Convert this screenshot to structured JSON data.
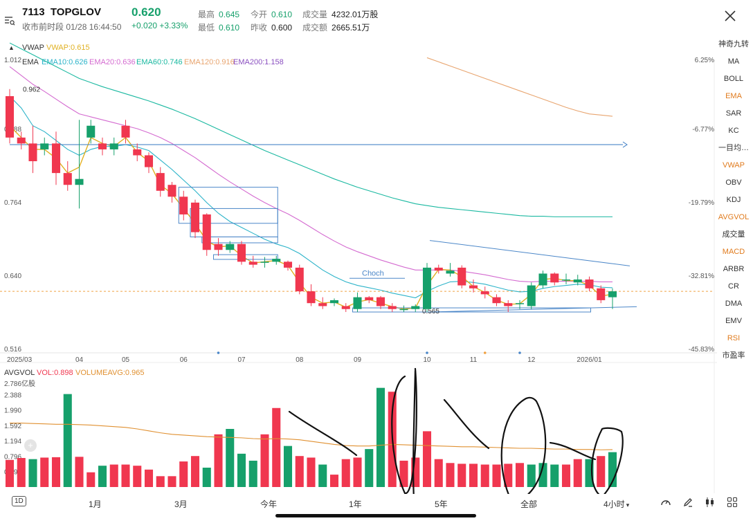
{
  "header": {
    "code": "7113",
    "name": "TOPGLOV",
    "price": "0.620",
    "status": "收市前时段 01/28 16:44:50",
    "change": "+0.020 +3.33%",
    "high_label": "最高",
    "high": "0.645",
    "open_label": "今开",
    "open": "0.610",
    "volume_label": "成交量",
    "volume": "4232.01万股",
    "low_label": "最低",
    "low": "0.610",
    "prevclose_label": "昨收",
    "prevclose": "0.600",
    "turnover_label": "成交额",
    "turnover": "2665.51万",
    "accent_up": "#f0374f",
    "accent_down": "#16a06b"
  },
  "icons": {
    "menu": "menu-search-icon",
    "close": "close-icon"
  },
  "sidebar": {
    "items": [
      "神奇九转",
      "MA",
      "BOLL",
      "EMA",
      "SAR",
      "KC",
      "一目均…",
      "VWAP",
      "OBV",
      "KDJ",
      "AVGVOL",
      "成交量",
      "MACD",
      "ARBR",
      "CR",
      "DMA",
      "EMV",
      "RSI",
      "市盈率"
    ],
    "active": [
      "EMA",
      "VWAP",
      "AVGVOL",
      "MACD",
      "RSI"
    ]
  },
  "indicators": {
    "vwap_name": "VWAP",
    "vwap_value": "VWAP:0.615",
    "ema_name": "EMA",
    "ema10": "EMA10:0.626",
    "ema20": "EMA20:0.636",
    "ema60": "EMA60:0.746",
    "ema120": "EMA120:0.916",
    "ema200": "EMA200:1.158",
    "avgvol_name": "AVGVOL",
    "vol": "VOL:0.898",
    "volavg": "VOLUMEAVG:0.965",
    "ema_colors": {
      "ema10": "#2bb3c9",
      "ema20": "#d46ad0",
      "ema60": "#19b8a0",
      "ema120": "#e8a46e",
      "ema200": "#8a4fc0",
      "vwap": "#e0b020"
    }
  },
  "annotations": {
    "choch": "Choch",
    "low_marker": "0.565",
    "high_marker": "0.962"
  },
  "bottom_bar": {
    "period": "1D",
    "range_labels": [
      "1月",
      "3月",
      "今年",
      "1年",
      "5年",
      "全部"
    ],
    "interval": "4小时",
    "interval_arrow": "▾",
    "icons": [
      "gauge-icon",
      "pen-icon",
      "candlestick-icon",
      "grid-icon"
    ]
  },
  "chart_data": [
    {
      "type": "candlestick",
      "title": "7113 TOPGLOV",
      "x": [
        "2025/03",
        "2025/03b",
        "2025/03c",
        "2025/03d",
        "2025/03e",
        "2025/03f",
        "04",
        "04b",
        "04c",
        "04d",
        "05",
        "05b",
        "05c",
        "05d",
        "05e",
        "06",
        "06b",
        "06c",
        "06d",
        "06e",
        "07",
        "07b",
        "07c",
        "07d",
        "07e",
        "08",
        "08b",
        "08c",
        "08d",
        "08e",
        "09",
        "09b",
        "09c",
        "09d",
        "09e",
        "09f",
        "10",
        "10b",
        "10c",
        "10d",
        "11",
        "11b",
        "11c",
        "11d",
        "11e",
        "12",
        "12b",
        "12c",
        "12d",
        "12e",
        "2026/01",
        "2026/01b",
        "2026/01c"
      ],
      "xticks": [
        "2025/03",
        "04",
        "05",
        "06",
        "07",
        "08",
        "09",
        "10",
        "11",
        "12",
        "2026/01"
      ],
      "y_ticks_left": [
        "1.012",
        "0.888",
        "0.764",
        "0.640",
        "0.516"
      ],
      "y_ticks_right": [
        "6.25%",
        "-6.77%",
        "-19.79%",
        "-32.81%",
        "-45.83%"
      ],
      "ylim": [
        0.516,
        1.012
      ],
      "reference_price": 0.62,
      "open": [
        0.95,
        0.88,
        0.87,
        0.86,
        0.87,
        0.82,
        0.8,
        0.88,
        0.87,
        0.86,
        0.9,
        0.86,
        0.85,
        0.82,
        0.8,
        0.78,
        0.77,
        0.75,
        0.7,
        0.69,
        0.7,
        0.67,
        0.67,
        0.67,
        0.67,
        0.66,
        0.62,
        0.6,
        0.6,
        0.595,
        0.59,
        0.61,
        0.61,
        0.595,
        0.59,
        0.59,
        0.59,
        0.66,
        0.65,
        0.66,
        0.63,
        0.62,
        0.61,
        0.6,
        0.6,
        0.595,
        0.63,
        0.65,
        0.64,
        0.635,
        0.64,
        0.625,
        0.61
      ],
      "close": [
        0.88,
        0.87,
        0.84,
        0.87,
        0.82,
        0.8,
        0.81,
        0.9,
        0.86,
        0.87,
        0.88,
        0.85,
        0.83,
        0.79,
        0.78,
        0.75,
        0.72,
        0.69,
        0.69,
        0.7,
        0.67,
        0.665,
        0.67,
        0.675,
        0.66,
        0.62,
        0.6,
        0.595,
        0.605,
        0.59,
        0.61,
        0.605,
        0.595,
        0.59,
        0.59,
        0.595,
        0.66,
        0.655,
        0.655,
        0.63,
        0.625,
        0.615,
        0.6,
        0.595,
        0.6,
        0.63,
        0.65,
        0.635,
        0.64,
        0.64,
        0.625,
        0.605,
        0.62
      ],
      "high": [
        0.962,
        0.89,
        0.9,
        0.88,
        0.89,
        0.84,
        0.91,
        0.91,
        0.88,
        0.88,
        0.91,
        0.87,
        0.855,
        0.83,
        0.805,
        0.79,
        0.775,
        0.752,
        0.71,
        0.705,
        0.705,
        0.68,
        0.678,
        0.68,
        0.672,
        0.665,
        0.632,
        0.61,
        0.608,
        0.6,
        0.618,
        0.612,
        0.612,
        0.6,
        0.596,
        0.598,
        0.668,
        0.665,
        0.668,
        0.664,
        0.64,
        0.628,
        0.615,
        0.605,
        0.605,
        0.635,
        0.655,
        0.652,
        0.65,
        0.648,
        0.645,
        0.63,
        0.625
      ],
      "low": [
        0.87,
        0.86,
        0.82,
        0.85,
        0.8,
        0.79,
        0.76,
        0.87,
        0.85,
        0.85,
        0.87,
        0.84,
        0.82,
        0.78,
        0.77,
        0.74,
        0.71,
        0.68,
        0.68,
        0.685,
        0.665,
        0.66,
        0.66,
        0.665,
        0.655,
        0.615,
        0.595,
        0.59,
        0.595,
        0.585,
        0.585,
        0.6,
        0.59,
        0.585,
        0.585,
        0.585,
        0.585,
        0.65,
        0.645,
        0.625,
        0.618,
        0.608,
        0.595,
        0.585,
        0.59,
        0.59,
        0.625,
        0.63,
        0.632,
        0.63,
        0.62,
        0.6,
        0.59
      ],
      "series": [
        {
          "name": "EMA10",
          "values": [
            0.95,
            0.93,
            0.9,
            0.89,
            0.875,
            0.86,
            0.85,
            0.86,
            0.865,
            0.865,
            0.868,
            0.864,
            0.858,
            0.842,
            0.826,
            0.808,
            0.79,
            0.77,
            0.752,
            0.738,
            0.728,
            0.718,
            0.708,
            0.7,
            0.694,
            0.684,
            0.67,
            0.656,
            0.645,
            0.636,
            0.63,
            0.626,
            0.622,
            0.617,
            0.613,
            0.609,
            0.62,
            0.629,
            0.636,
            0.637,
            0.635,
            0.632,
            0.627,
            0.622,
            0.619,
            0.62,
            0.625,
            0.628,
            0.63,
            0.632,
            0.631,
            0.627,
            0.626
          ]
        },
        {
          "name": "EMA20",
          "values": [
            1.0,
            0.985,
            0.97,
            0.958,
            0.945,
            0.932,
            0.92,
            0.915,
            0.91,
            0.905,
            0.9,
            0.895,
            0.888,
            0.88,
            0.87,
            0.858,
            0.846,
            0.832,
            0.818,
            0.805,
            0.793,
            0.781,
            0.77,
            0.76,
            0.751,
            0.74,
            0.728,
            0.716,
            0.705,
            0.695,
            0.687,
            0.68,
            0.673,
            0.667,
            0.661,
            0.656,
            0.656,
            0.656,
            0.656,
            0.654,
            0.651,
            0.648,
            0.644,
            0.64,
            0.637,
            0.636,
            0.637,
            0.637,
            0.637,
            0.637,
            0.637,
            0.636,
            0.636
          ]
        },
        {
          "name": "EMA60",
          "values": [
            1.04,
            1.03,
            1.02,
            1.01,
            1.0,
            0.99,
            0.98,
            0.973,
            0.966,
            0.96,
            0.954,
            0.948,
            0.942,
            0.935,
            0.928,
            0.92,
            0.912,
            0.903,
            0.894,
            0.885,
            0.876,
            0.867,
            0.858,
            0.85,
            0.842,
            0.834,
            0.826,
            0.818,
            0.81,
            0.803,
            0.796,
            0.79,
            0.784,
            0.778,
            0.773,
            0.768,
            0.765,
            0.762,
            0.76,
            0.758,
            0.756,
            0.754,
            0.752,
            0.75,
            0.748,
            0.747,
            0.747,
            0.746,
            0.746,
            0.746,
            0.746,
            0.746,
            0.746
          ]
        },
        {
          "name": "EMA120",
          "values": [
            null,
            null,
            null,
            null,
            null,
            null,
            null,
            null,
            null,
            null,
            null,
            null,
            null,
            null,
            null,
            null,
            null,
            null,
            null,
            null,
            null,
            null,
            null,
            null,
            null,
            null,
            null,
            null,
            null,
            null,
            null,
            null,
            null,
            null,
            null,
            null,
            1.015,
            1.008,
            1.001,
            0.994,
            0.987,
            0.98,
            0.973,
            0.966,
            0.959,
            0.952,
            0.945,
            0.938,
            0.931,
            0.925,
            0.92,
            0.918,
            0.916
          ]
        },
        {
          "name": "VWAP",
          "values": [
            0.9,
            0.88,
            0.86,
            0.86,
            0.845,
            0.82,
            0.83,
            0.88,
            0.87,
            0.865,
            0.88,
            0.855,
            0.84,
            0.8,
            0.785,
            0.76,
            0.735,
            0.705,
            0.695,
            0.697,
            0.68,
            0.668,
            0.67,
            0.672,
            0.664,
            0.635,
            0.61,
            0.6,
            0.602,
            0.593,
            0.602,
            0.606,
            0.6,
            0.594,
            0.59,
            0.592,
            0.63,
            0.657,
            0.656,
            0.645,
            0.628,
            0.618,
            0.605,
            0.598,
            0.599,
            0.615,
            0.64,
            0.642,
            0.638,
            0.638,
            0.63,
            0.612,
            0.615
          ]
        }
      ]
    },
    {
      "type": "bar",
      "title": "AVGVOL",
      "unit_label": "2.786亿股",
      "y_ticks": [
        "2.388",
        "1.990",
        "1.592",
        "1.194",
        "0.796",
        "0.398"
      ],
      "ylim": [
        0,
        2.786
      ],
      "values": [
        0.7,
        0.75,
        0.72,
        0.76,
        0.77,
        2.4,
        0.78,
        0.38,
        0.55,
        0.58,
        0.58,
        0.55,
        0.45,
        0.28,
        0.28,
        0.66,
        0.8,
        0.5,
        1.36,
        1.5,
        0.86,
        0.68,
        1.36,
        2.04,
        1.06,
        0.8,
        0.76,
        0.58,
        0.32,
        0.72,
        0.76,
        0.98,
        2.56,
        2.46,
        0.68,
        0.76,
        1.44,
        0.72,
        0.62,
        0.6,
        0.6,
        0.58,
        0.58,
        0.6,
        0.62,
        0.58,
        0.62,
        0.58,
        0.58,
        0.72,
        0.72,
        0.8,
        0.9
      ],
      "colors_up": [
        false,
        false,
        true,
        false,
        false,
        true,
        false,
        false,
        true,
        false,
        false,
        false,
        false,
        false,
        false,
        false,
        false,
        true,
        false,
        true,
        true,
        true,
        false,
        false,
        true,
        false,
        false,
        true,
        false,
        false,
        false,
        true,
        true,
        false,
        false,
        false,
        false,
        false,
        false,
        false,
        false,
        false,
        false,
        false,
        false,
        true,
        true,
        true,
        false,
        false,
        true,
        false,
        true
      ],
      "series": [
        {
          "name": "VOLUMEAVG",
          "values": [
            1.65,
            1.65,
            1.64,
            1.63,
            1.62,
            1.62,
            1.61,
            1.6,
            1.58,
            1.56,
            1.54,
            1.5,
            1.45,
            1.4,
            1.36,
            1.34,
            1.32,
            1.3,
            1.29,
            1.28,
            1.27,
            1.25,
            1.24,
            1.25,
            1.24,
            1.22,
            1.18,
            1.14,
            1.1,
            1.07,
            1.06,
            1.06,
            1.08,
            1.1,
            1.09,
            1.08,
            1.07,
            1.06,
            1.05,
            1.04,
            1.04,
            1.03,
            1.02,
            1.01,
            1.0,
            1.0,
            0.99,
            0.98,
            0.98,
            0.97,
            0.97,
            0.96,
            0.965
          ]
        }
      ]
    }
  ]
}
